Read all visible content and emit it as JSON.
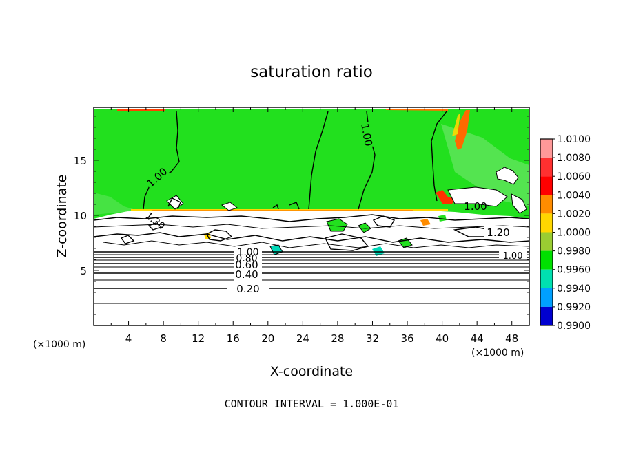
{
  "chart_data": {
    "type": "heatmap",
    "title": "saturation ratio",
    "xlabel": "X-coordinate",
    "ylabel": "Z-coordinate",
    "x_unit_left": "(×1000 m)",
    "y_unit_right": "(×1000 m)",
    "xlim": [
      0,
      50
    ],
    "ylim": [
      0,
      19.8
    ],
    "x_ticks": [
      "4",
      "8",
      "12",
      "16",
      "20",
      "24",
      "28",
      "32",
      "36",
      "40",
      "44",
      "48"
    ],
    "y_ticks": [
      "5",
      "10",
      "15"
    ],
    "contour_interval_text": "CONTOUR INTERVAL = 1.000E-01",
    "colorbar": {
      "labels": [
        "1.0100",
        "1.0080",
        "1.0060",
        "1.0040",
        "1.0020",
        "1.0000",
        "0.9980",
        "0.9960",
        "0.9940",
        "0.9920",
        "0.9900"
      ],
      "colors": [
        "#ff9999",
        "#ff3030",
        "#ff0000",
        "#ff8c00",
        "#ffd700",
        "#9acd32",
        "#00e000",
        "#00e0b0",
        "#00a0ff",
        "#0000d0",
        "#7000b0"
      ]
    },
    "fill_colors": {
      "saturated": "#22e01e",
      "unsaturated": "#ffffff",
      "supersat": "#ff4000",
      "edge": "#ffd700",
      "subsat": "#00d8b8"
    },
    "contour_labels": [
      "1.00",
      "1.00",
      "1.30",
      "1.00",
      "1.20",
      "1.00",
      "1.00",
      "0.80",
      "0.60",
      "0.40",
      "0.20"
    ],
    "stratified_levels": [
      0.2,
      0.4,
      0.6,
      0.8,
      1.0
    ],
    "cloud_base_z": 10.6
  }
}
